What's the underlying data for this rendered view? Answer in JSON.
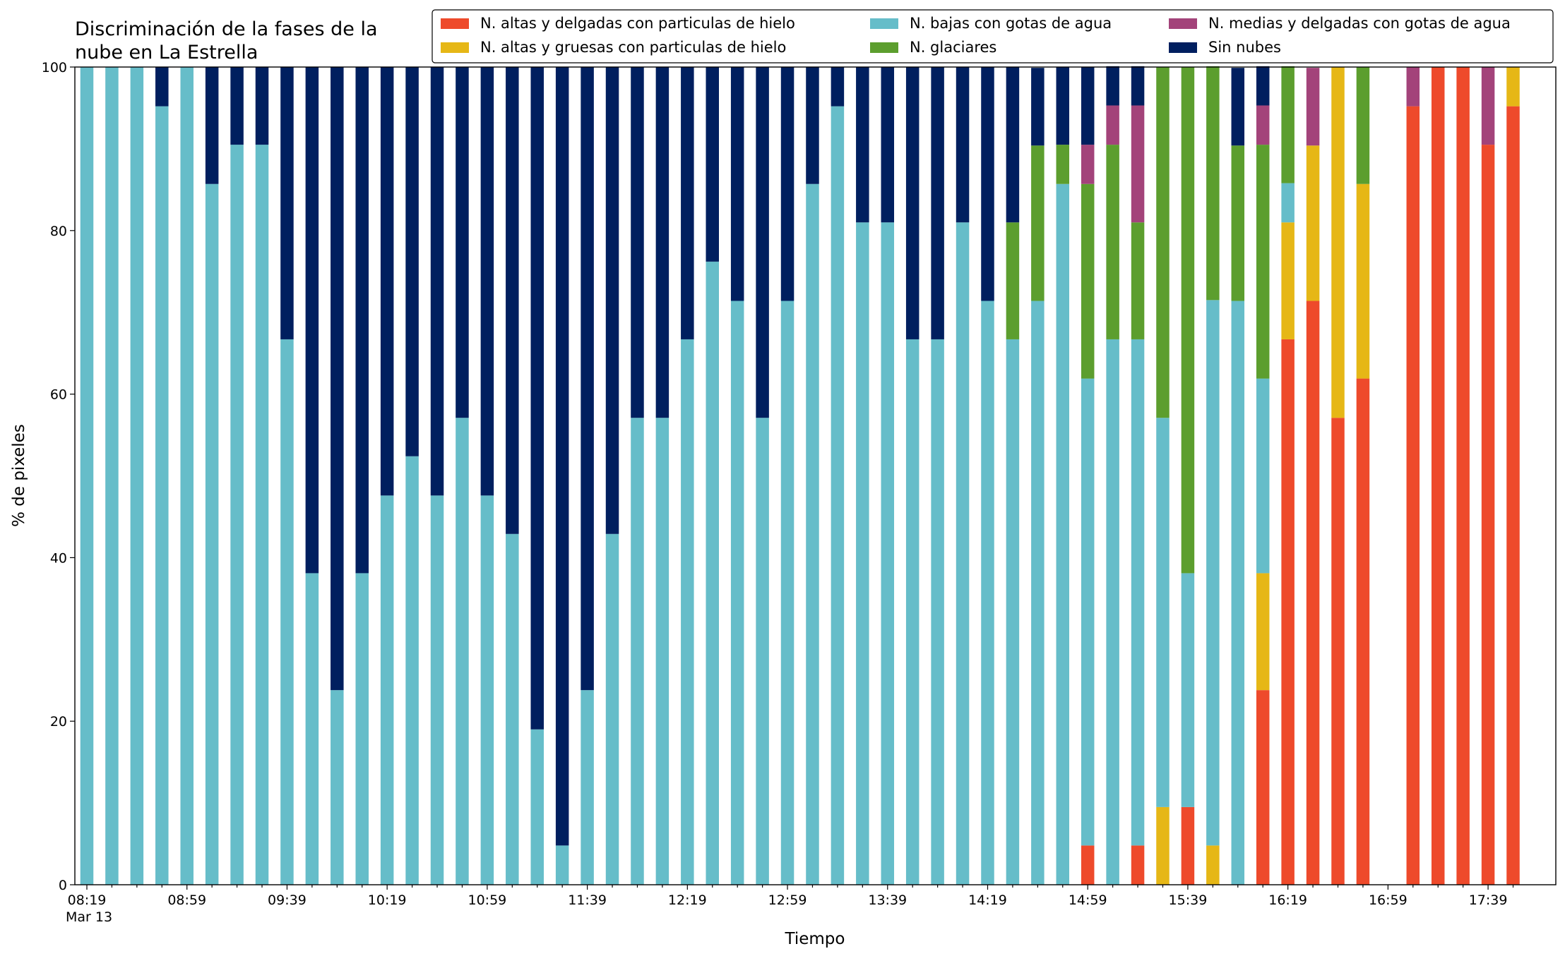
{
  "chart_data": {
    "type": "stacked_bar",
    "title": [
      "Discriminación de la fases de la",
      "nube en La Estrella"
    ],
    "xlabel": "Tiempo",
    "ylabel": "% de pixeles",
    "x_sublabel": "Mar 13",
    "categories": [
      "08:19",
      null,
      null,
      null,
      "08:59",
      null,
      null,
      null,
      "09:39",
      null,
      null,
      null,
      "10:19",
      null,
      null,
      null,
      "10:59",
      null,
      null,
      null,
      "11:39",
      null,
      null,
      null,
      "12:19",
      null,
      null,
      null,
      "12:59",
      null,
      null,
      null,
      "13:39",
      null,
      null,
      null,
      "14:19",
      null,
      null,
      null,
      "14:59",
      null,
      null,
      null,
      "15:39",
      null,
      null,
      null,
      "16:19",
      null,
      null,
      null,
      "16:59",
      null,
      null,
      null,
      "17:39",
      null
    ],
    "ylim": [
      0,
      100
    ],
    "yticks": [
      0,
      20,
      40,
      60,
      80,
      100
    ],
    "legend": "upper right",
    "series": [
      {
        "name": "N. altas y delgadas con particulas de hielo",
        "color": "#ee4a2b",
        "values": [
          0,
          0,
          0,
          0,
          0,
          0,
          0,
          0,
          0,
          0,
          0,
          0,
          0,
          0,
          0,
          0,
          0,
          0,
          0,
          0,
          0,
          0,
          0,
          0,
          0,
          0,
          0,
          0,
          0,
          0,
          0,
          0,
          0,
          0,
          0,
          0,
          0,
          0,
          0,
          0,
          4.8,
          0,
          4.8,
          0,
          9.5,
          0,
          0,
          23.8,
          66.7,
          71.4,
          57.1,
          61.9,
          null,
          95.2,
          100,
          100,
          90.5,
          95.2
        ]
      },
      {
        "name": "N. altas y gruesas con particulas de hielo",
        "color": "#e6b716",
        "values": [
          0,
          0,
          0,
          0,
          0,
          0,
          0,
          0,
          0,
          0,
          0,
          0,
          0,
          0,
          0,
          0,
          0,
          0,
          0,
          0,
          0,
          0,
          0,
          0,
          0,
          0,
          0,
          0,
          0,
          0,
          0,
          0,
          0,
          0,
          0,
          0,
          0,
          0,
          0,
          0,
          0,
          0,
          0,
          9.5,
          0,
          4.8,
          0,
          14.3,
          14.3,
          19,
          42.9,
          23.8,
          null,
          0,
          0,
          0,
          0,
          4.8
        ]
      },
      {
        "name": "N. bajas con gotas de agua",
        "color": "#66bdc9",
        "values": [
          100,
          100,
          100,
          95.2,
          100,
          85.7,
          90.5,
          90.5,
          66.7,
          38.1,
          23.8,
          38.1,
          47.6,
          52.4,
          47.6,
          57.1,
          47.6,
          42.9,
          19,
          4.8,
          23.8,
          42.9,
          57.1,
          57.1,
          66.7,
          76.2,
          71.4,
          57.1,
          71.4,
          85.7,
          95.2,
          81,
          81,
          66.7,
          66.7,
          81,
          71.4,
          66.7,
          71.4,
          85.7,
          57.1,
          66.7,
          61.9,
          47.6,
          28.6,
          66.7,
          71.4,
          23.8,
          4.8,
          0,
          0,
          0,
          null,
          0,
          0,
          0,
          0,
          0
        ]
      },
      {
        "name": "N. glaciares",
        "color": "#5c9e2e",
        "values": [
          0,
          0,
          0,
          0,
          0,
          0,
          0,
          0,
          0,
          0,
          0,
          0,
          0,
          0,
          0,
          0,
          0,
          0,
          0,
          0,
          0,
          0,
          0,
          0,
          0,
          0,
          0,
          0,
          0,
          0,
          0,
          0,
          0,
          0,
          0,
          0,
          0,
          14.3,
          19,
          4.8,
          23.8,
          23.8,
          14.3,
          42.9,
          61.9,
          28.6,
          19,
          28.6,
          14.3,
          0,
          0,
          14.3,
          null,
          0,
          0,
          0,
          0,
          0
        ]
      },
      {
        "name": "N. medias y delgadas con gotas de agua",
        "color": "#a3437a",
        "values": [
          0,
          0,
          0,
          0,
          0,
          0,
          0,
          0,
          0,
          0,
          0,
          0,
          0,
          0,
          0,
          0,
          0,
          0,
          0,
          0,
          0,
          0,
          0,
          0,
          0,
          0,
          0,
          0,
          0,
          0,
          0,
          0,
          0,
          0,
          0,
          0,
          0,
          0,
          0,
          0,
          4.8,
          4.8,
          14.3,
          0,
          0,
          0,
          0,
          4.8,
          0,
          9.5,
          0,
          0,
          null,
          4.8,
          0,
          0,
          9.5,
          0
        ]
      },
      {
        "name": "Sin nubes",
        "color": "#001f5f",
        "values": [
          0,
          0,
          0,
          4.8,
          0,
          14.3,
          9.5,
          9.5,
          33.3,
          61.9,
          76.2,
          61.9,
          52.4,
          47.6,
          52.4,
          42.9,
          52.4,
          57.1,
          81,
          95.2,
          76.2,
          57.1,
          42.9,
          42.9,
          33.3,
          23.8,
          28.6,
          42.9,
          28.6,
          14.3,
          4.8,
          19,
          19,
          33.3,
          33.3,
          19,
          28.6,
          19,
          9.5,
          9.5,
          9.5,
          4.8,
          4.8,
          0,
          0,
          0,
          9.5,
          4.8,
          0,
          0,
          0,
          0,
          null,
          0,
          0,
          0,
          0,
          0
        ]
      }
    ]
  }
}
